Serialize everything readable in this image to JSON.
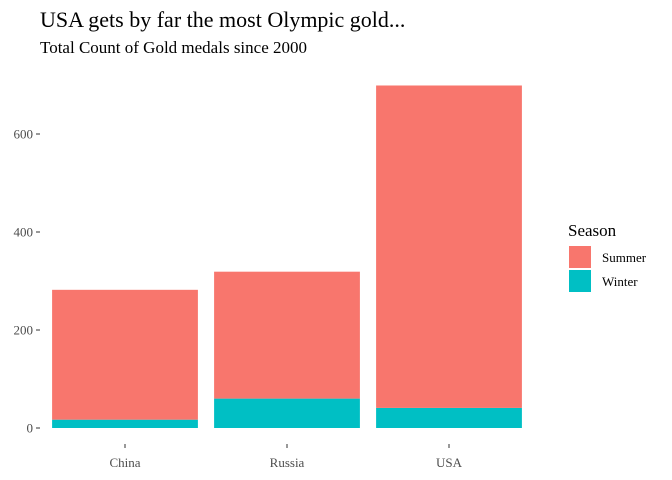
{
  "chart_data": {
    "type": "bar",
    "stacked": true,
    "title": "USA gets by far the most Olympic gold...",
    "subtitle": "Total Count of Gold medals since 2000",
    "xlabel": "",
    "ylabel": "",
    "categories": [
      "China",
      "Russia",
      "USA"
    ],
    "series": [
      {
        "name": "Winter",
        "color": "#00BFC4",
        "values": [
          17,
          60,
          41
        ]
      },
      {
        "name": "Summer",
        "color": "#F8766D",
        "values": [
          265,
          259,
          658
        ]
      }
    ],
    "totals": [
      282,
      319,
      699
    ],
    "ylim": [
      0,
      735
    ],
    "yticks": [
      0,
      200,
      400,
      600
    ],
    "ytick_labels": [
      "0",
      "200",
      "400",
      "600"
    ],
    "grid": false,
    "legend": {
      "title": "Season",
      "placement": "right",
      "entries": [
        {
          "name": "Summer",
          "color": "#F8766D"
        },
        {
          "name": "Winter",
          "color": "#00BFC4"
        }
      ]
    }
  }
}
